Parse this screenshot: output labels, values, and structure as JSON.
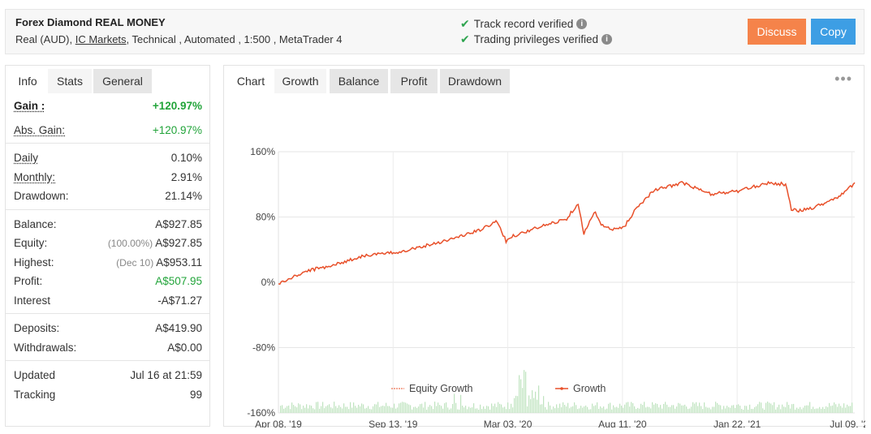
{
  "header": {
    "title": "Forex Diamond REAL MONEY",
    "meta_prefix": "Real (AUD),",
    "broker": "IC Markets",
    "meta_suffix": ", Technical , Automated , 1:500 , MetaTrader 4",
    "verify_track": "Track record verified",
    "verify_trading": "Trading privileges verified",
    "discuss_label": "Discuss",
    "copy_label": "Copy"
  },
  "left_tabs": [
    "Info",
    "Stats",
    "General"
  ],
  "stats": {
    "gain": {
      "label": "Gain :",
      "value": "+120.97%"
    },
    "abs_gain": {
      "label": "Abs. Gain:",
      "value": "+120.97%"
    },
    "daily": {
      "label": "Daily",
      "value": "0.10%"
    },
    "monthly": {
      "label": "Monthly:",
      "value": "2.91%"
    },
    "drawdown": {
      "label": "Drawdown:",
      "value": "21.14%"
    },
    "balance": {
      "label": "Balance:",
      "value": "A$927.85"
    },
    "equity": {
      "label": "Equity:",
      "sub": "(100.00%)",
      "value": "A$927.85"
    },
    "highest": {
      "label": "Highest:",
      "sub": "(Dec 10)",
      "value": "A$953.11"
    },
    "profit": {
      "label": "Profit:",
      "value": "A$507.95"
    },
    "interest": {
      "label": "Interest",
      "value": "-A$71.27"
    },
    "deposits": {
      "label": "Deposits:",
      "value": "A$419.90"
    },
    "withdrawals": {
      "label": "Withdrawals:",
      "value": "A$0.00"
    },
    "updated": {
      "label": "Updated",
      "value": "Jul 16 at 21:59"
    },
    "tracking": {
      "label": "Tracking",
      "value": "99"
    }
  },
  "chart_tabs": [
    "Chart",
    "Growth",
    "Balance",
    "Profit",
    "Drawdown"
  ],
  "more_icon": "more-dots-icon",
  "colors": {
    "growth": "#e8502a",
    "volume": "#bfe3bf",
    "green": "#22a43a",
    "discuss": "#f5834a",
    "copy": "#3d9ee4"
  },
  "chart_data": {
    "type": "line",
    "y_ticks": [
      "160%",
      "80%",
      "0%",
      "-80%",
      "-160%"
    ],
    "x_ticks": [
      "Apr 08, '19",
      "Sep 13, '19",
      "Mar 03, '20",
      "Aug 11, '20",
      "Jan 22, '21",
      "Jul 09, '21"
    ],
    "ylim": [
      -160,
      160
    ],
    "grid": true,
    "legend": [
      "Equity Growth",
      "Growth"
    ],
    "legend_placement": "bottom",
    "growth_series": {
      "name": "Growth",
      "x": [
        0,
        0.05,
        0.1,
        0.15,
        0.2,
        0.25,
        0.3,
        0.35,
        0.38,
        0.395,
        0.4,
        0.45,
        0.5,
        0.52,
        0.53,
        0.55,
        0.56,
        0.58,
        0.6,
        0.62,
        0.65,
        0.7,
        0.75,
        0.8,
        0.85,
        0.88,
        0.89,
        0.9,
        0.93,
        0.95,
        0.98,
        1.0
      ],
      "y": [
        -2,
        14,
        22,
        33,
        36,
        44,
        53,
        64,
        75,
        50,
        55,
        67,
        78,
        97,
        60,
        87,
        70,
        64,
        68,
        90,
        112,
        122,
        108,
        112,
        122,
        120,
        90,
        87,
        92,
        98,
        108,
        122
      ]
    },
    "volume_bars": "dense-low"
  }
}
